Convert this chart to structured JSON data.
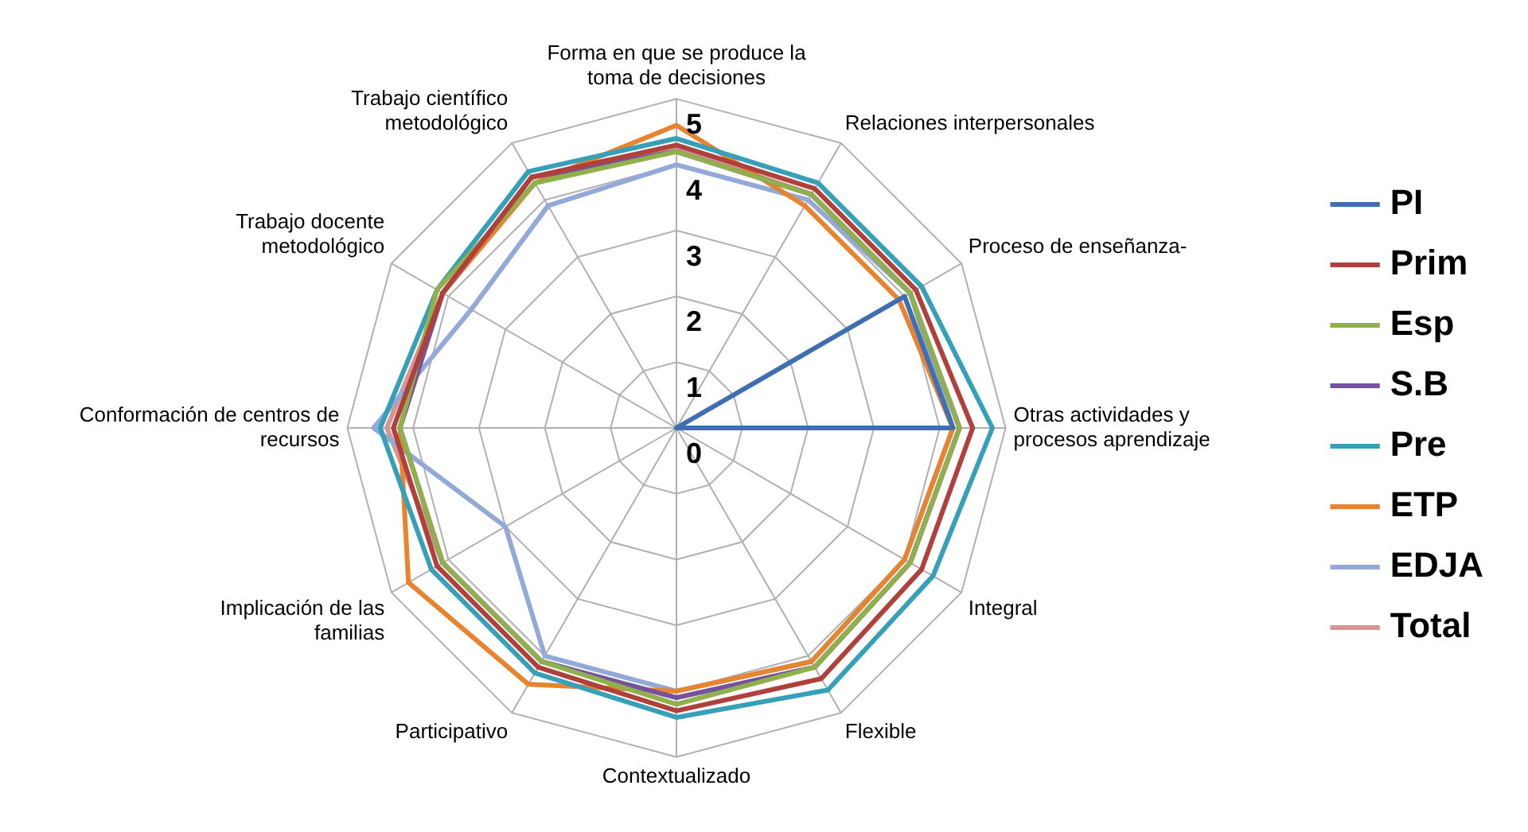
{
  "chart_data": {
    "type": "radar",
    "categories": [
      "Forma en que se produce la toma de decisiones",
      "Relaciones interpersonales",
      "Proceso de enseñanza-",
      "Otras actividades y procesos aprendizaje",
      "Integral",
      "Flexible",
      "Contextualizado",
      "Participativo",
      "Implicación de las familias",
      "Conformación de centros de recursos",
      "Trabajo docente metodológico",
      "Trabajo científico metodológico"
    ],
    "ylim": [
      0,
      5
    ],
    "yticks": [
      0,
      1,
      2,
      3,
      4,
      5
    ],
    "grid": true,
    "legend": "right",
    "marker": "none",
    "line_style": "solid",
    "series": [
      {
        "name": "PI",
        "color": "#3f6fb0",
        "values": [
          0,
          0,
          4.0,
          4.2,
          0,
          0,
          0,
          0,
          0,
          0,
          0,
          0
        ]
      },
      {
        "name": "Prim",
        "color": "#b0403c",
        "values": [
          4.3,
          4.2,
          4.2,
          4.5,
          4.3,
          4.4,
          4.3,
          4.2,
          4.2,
          4.3,
          4.1,
          4.4
        ]
      },
      {
        "name": "Esp",
        "color": "#8fb04a",
        "values": [
          4.2,
          4.1,
          4.1,
          4.3,
          4.1,
          4.2,
          4.2,
          4.1,
          4.1,
          4.2,
          4.2,
          4.3
        ]
      },
      {
        "name": "S.B",
        "color": "#7452a0",
        "values": [
          4.2,
          4.1,
          4.1,
          4.3,
          4.1,
          4.2,
          4.1,
          4.1,
          4.1,
          4.2,
          4.1,
          4.4
        ]
      },
      {
        "name": "Pre",
        "color": "#35a0b8",
        "values": [
          4.4,
          4.3,
          4.3,
          4.8,
          4.5,
          4.6,
          4.4,
          4.3,
          4.3,
          4.5,
          4.2,
          4.5
        ]
      },
      {
        "name": "ETP",
        "color": "#e8832e",
        "values": [
          4.6,
          3.9,
          3.9,
          4.2,
          4.0,
          4.1,
          4.0,
          4.5,
          4.7,
          4.2,
          4.1,
          4.3
        ]
      },
      {
        "name": "EDJA",
        "color": "#93a9d8",
        "values": [
          4.0,
          4.0,
          4.1,
          4.2,
          4.0,
          4.1,
          4.0,
          4.0,
          3.0,
          4.6,
          3.6,
          3.9
        ]
      },
      {
        "name": "Total",
        "color": "#d99594",
        "values": [
          4.25,
          4.1,
          4.1,
          4.3,
          4.1,
          4.2,
          4.1,
          4.1,
          4.1,
          4.4,
          4.1,
          4.3
        ]
      }
    ]
  }
}
